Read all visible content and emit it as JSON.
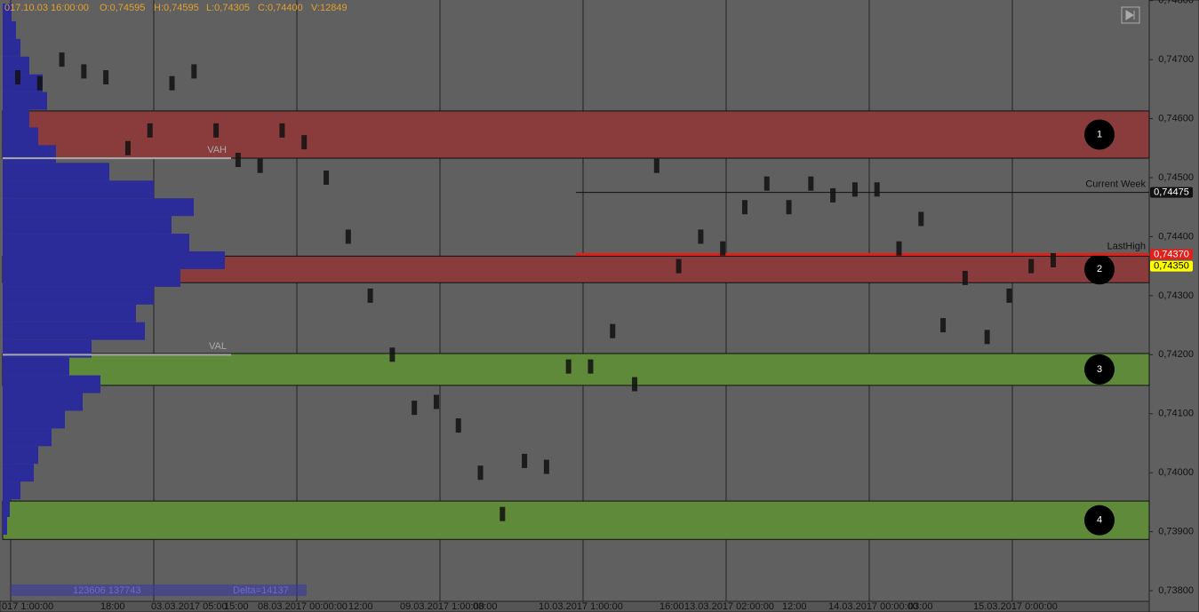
{
  "chart_data": {
    "type": "market-profile",
    "header": [
      "017.10.03 16:00:00",
      "O:0,74595",
      "H:0,74595",
      "L:0,74305",
      "C:0,74400",
      "V:12849"
    ],
    "ylim": [
      0.73764,
      0.74801
    ],
    "yticks": [
      {
        "value": 0.738,
        "label": "0,73800"
      },
      {
        "value": 0.739,
        "label": "0,73900"
      },
      {
        "value": 0.74,
        "label": "0,74000"
      },
      {
        "value": 0.741,
        "label": "0,74100"
      },
      {
        "value": 0.742,
        "label": "0,74200"
      },
      {
        "value": 0.743,
        "label": "0,74300"
      },
      {
        "value": 0.744,
        "label": "0,74400"
      },
      {
        "value": 0.745,
        "label": "0,74500"
      },
      {
        "value": 0.746,
        "label": "0,74600"
      },
      {
        "value": 0.747,
        "label": "0,74700"
      },
      {
        "value": 0.748,
        "label": "0,74800"
      }
    ],
    "categories": [
      null,
      null,
      null,
      null,
      null,
      null,
      null,
      null,
      null,
      null,
      null,
      null,
      null,
      null,
      null,
      null,
      null,
      null,
      null,
      null,
      null,
      null,
      null,
      null,
      null,
      null,
      null,
      null,
      null,
      null,
      null,
      null,
      null,
      null,
      null,
      null,
      null,
      null,
      null,
      null,
      null,
      null,
      null,
      null,
      null,
      null,
      null,
      null
    ],
    "series": [
      {
        "color": "#111111",
        "values": [
          0.7467,
          0.7466,
          0.747,
          0.7468,
          0.7467,
          0.7455,
          0.7458,
          0.7466,
          0.7468,
          0.7458,
          0.7453,
          0.7452,
          0.7458,
          0.7456,
          0.745,
          0.744,
          0.743,
          0.742,
          0.7411,
          0.7412,
          0.7408,
          0.74,
          0.7393,
          0.7402,
          0.7401,
          0.7418,
          0.7418,
          0.7424,
          0.7415,
          0.7452,
          0.7435,
          0.744,
          0.7438,
          0.7445,
          0.7449,
          0.7445,
          0.7449,
          0.7447,
          0.7448,
          0.7448,
          0.7438,
          0.7443,
          0.7425,
          0.7433,
          0.7423,
          0.743,
          0.7435,
          0.7436
        ]
      }
    ],
    "xlabels": [
      "017 1:00:00",
      "18:00",
      "03.03.2017 05:00",
      "15:00",
      "08.03.2017 00:00:00",
      "12:00",
      "09.03.2017 1:00:00",
      "03:00",
      "10.03.2017 1:00:00",
      "16:00",
      "13.03.2017 02:00:00",
      "12:00",
      "14.03.2017 00:00:00",
      "03:00",
      "15.03.2017 0:00:00"
    ],
    "zones": [
      {
        "low": 0.74533,
        "high": 0.74613,
        "color": "#8a3c3c",
        "label": "1"
      },
      {
        "low": 0.74322,
        "high": 0.74367,
        "color": "#8a3c3c",
        "label": "2"
      },
      {
        "low": 0.74148,
        "high": 0.74202,
        "color": "#5f8a3a",
        "label": "3"
      },
      {
        "low": 0.73887,
        "high": 0.73952,
        "color": "#5f8a3a",
        "label": "4"
      }
    ],
    "levels": [
      {
        "price": 0.74533,
        "label": "VAH",
        "color": "#aaaaaa"
      },
      {
        "price": 0.742,
        "label": "VAL",
        "color": "#aaaaaa"
      },
      {
        "price": 0.74475,
        "label": "Current Week",
        "color": "#111111"
      },
      {
        "price": 0.7437,
        "label": "LastHigh",
        "color": "#e0201a"
      }
    ],
    "price_tags": [
      {
        "value": 0.74475,
        "label": "0,74475",
        "color": "#111111",
        "text": "#ffffff"
      },
      {
        "value": 0.7437,
        "label": "0,74370",
        "color": "#e0201a",
        "text": "#ffffff"
      },
      {
        "value": 0.7435,
        "label": "0,74350",
        "color": "#ffff00",
        "text": "#000000"
      }
    ],
    "profile": {
      "color": "#2b2b9a",
      "xlim": [
        0,
        290
      ],
      "prices": [
        0.7391,
        0.7394,
        0.7397,
        0.74,
        0.7403,
        0.7406,
        0.7409,
        0.7412,
        0.7415,
        0.7418,
        0.7421,
        0.7424,
        0.7427,
        0.743,
        0.7433,
        0.7436,
        0.7439,
        0.7442,
        0.7445,
        0.7448,
        0.7451,
        0.7454,
        0.7457,
        0.746,
        0.7463,
        0.7466,
        0.7469,
        0.7472,
        0.7475,
        0.7478
      ],
      "volumes": [
        5,
        8,
        20,
        35,
        40,
        55,
        70,
        90,
        110,
        75,
        100,
        160,
        150,
        170,
        200,
        250,
        210,
        190,
        215,
        170,
        120,
        60,
        40,
        30,
        50,
        45,
        30,
        20,
        15,
        10
      ]
    },
    "profile_stats": "123606 137743",
    "delta": "Delta=14137"
  }
}
